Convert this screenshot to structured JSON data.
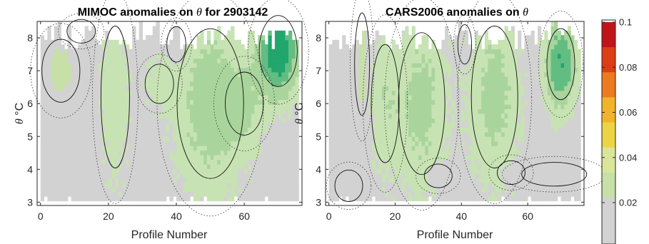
{
  "figure": {
    "colormap": [
      "#d2d2d2",
      "#d2d2d2",
      "#c6e0a8",
      "#d9e69a",
      "#ecd545",
      "#f0b42a",
      "#ec7a1e",
      "#dc3c16",
      "#c0141a"
    ],
    "fill_color_bands": [
      "#d2d2d2",
      "#c8e3b3",
      "#a9d59c",
      "#63bd83",
      "#21a66c"
    ]
  },
  "chart_data": [
    {
      "type": "heatmap",
      "title_prefix": "MIMOC anomalies on",
      "title_symbol": "θ",
      "title_suffix": "for 2903142",
      "xlabel": "Profile Number",
      "ylabel_symbol": "θ",
      "ylabel_unit": "°C",
      "xlim": [
        -1,
        77
      ],
      "ylim": [
        2.9,
        8.5
      ],
      "xticks": [
        0,
        20,
        40,
        60
      ],
      "yticks": [
        3,
        4,
        5,
        6,
        7,
        8
      ],
      "features": [
        {
          "kind": "warm",
          "x": 6,
          "y": 7.0,
          "sx": 4,
          "sy": 0.8,
          "amp": 0.028
        },
        {
          "kind": "warm",
          "x": 40,
          "y": 7.8,
          "sx": 2,
          "sy": 0.45,
          "amp": 0.018
        },
        {
          "kind": "warm",
          "x": 12,
          "y": 8.2,
          "sx": 3,
          "sy": 0.3,
          "amp": 0.014
        },
        {
          "kind": "green",
          "x": 50,
          "y": 6.0,
          "sx": 7,
          "sy": 1.9,
          "amp": 0.018
        },
        {
          "kind": "green",
          "x": 70,
          "y": 7.6,
          "sx": 4,
          "sy": 0.9,
          "amp": 0.045
        },
        {
          "kind": "green",
          "x": 22,
          "y": 6.2,
          "sx": 3,
          "sy": 1.8,
          "amp": 0.01
        },
        {
          "kind": "green",
          "x": 60,
          "y": 6.0,
          "sx": 4,
          "sy": 0.8,
          "amp": 0.01
        },
        {
          "kind": "green",
          "x": 35,
          "y": 6.6,
          "sx": 3,
          "sy": 0.5,
          "amp": 0.008
        }
      ]
    },
    {
      "type": "heatmap",
      "title_prefix": "CARS2006 anomalies on",
      "title_symbol": "θ",
      "title_suffix": "",
      "xlabel": "Profile Number",
      "ylabel_symbol": "θ",
      "ylabel_unit": "°C",
      "xlim": [
        -1,
        77
      ],
      "ylim": [
        2.9,
        8.5
      ],
      "xticks": [
        0,
        20,
        40,
        60
      ],
      "yticks": [
        3,
        4,
        5,
        6,
        7,
        8
      ],
      "features": [
        {
          "kind": "warm",
          "x": 10,
          "y": 7.2,
          "sx": 1.6,
          "sy": 1.3,
          "amp": 0.03
        },
        {
          "kind": "warm",
          "x": 41,
          "y": 7.8,
          "sx": 1.5,
          "sy": 0.5,
          "amp": 0.022
        },
        {
          "kind": "warm",
          "x": 33,
          "y": 3.8,
          "sx": 3,
          "sy": 0.3,
          "amp": 0.016
        },
        {
          "kind": "warm",
          "x": 68,
          "y": 3.85,
          "sx": 7,
          "sy": 0.3,
          "amp": 0.016
        },
        {
          "kind": "warm",
          "x": 55,
          "y": 3.9,
          "sx": 3,
          "sy": 0.3,
          "amp": 0.012
        },
        {
          "kind": "warm",
          "x": 6,
          "y": 3.5,
          "sx": 3,
          "sy": 0.4,
          "amp": 0.012
        },
        {
          "kind": "green",
          "x": 28,
          "y": 6.0,
          "sx": 5,
          "sy": 1.8,
          "amp": 0.016
        },
        {
          "kind": "green",
          "x": 50,
          "y": 6.2,
          "sx": 5,
          "sy": 1.8,
          "amp": 0.016
        },
        {
          "kind": "green",
          "x": 70,
          "y": 7.2,
          "sx": 3,
          "sy": 0.9,
          "amp": 0.035
        },
        {
          "kind": "green",
          "x": 17,
          "y": 6.0,
          "sx": 3,
          "sy": 1.5,
          "amp": 0.01
        }
      ]
    }
  ],
  "colorbar": {
    "ticks": [
      "0.1",
      "0.08",
      "0.06",
      "0.04",
      "0.02"
    ],
    "tick_values": [
      0.1,
      0.08,
      0.06,
      0.04,
      0.02
    ],
    "range": [
      0,
      0.1
    ]
  }
}
